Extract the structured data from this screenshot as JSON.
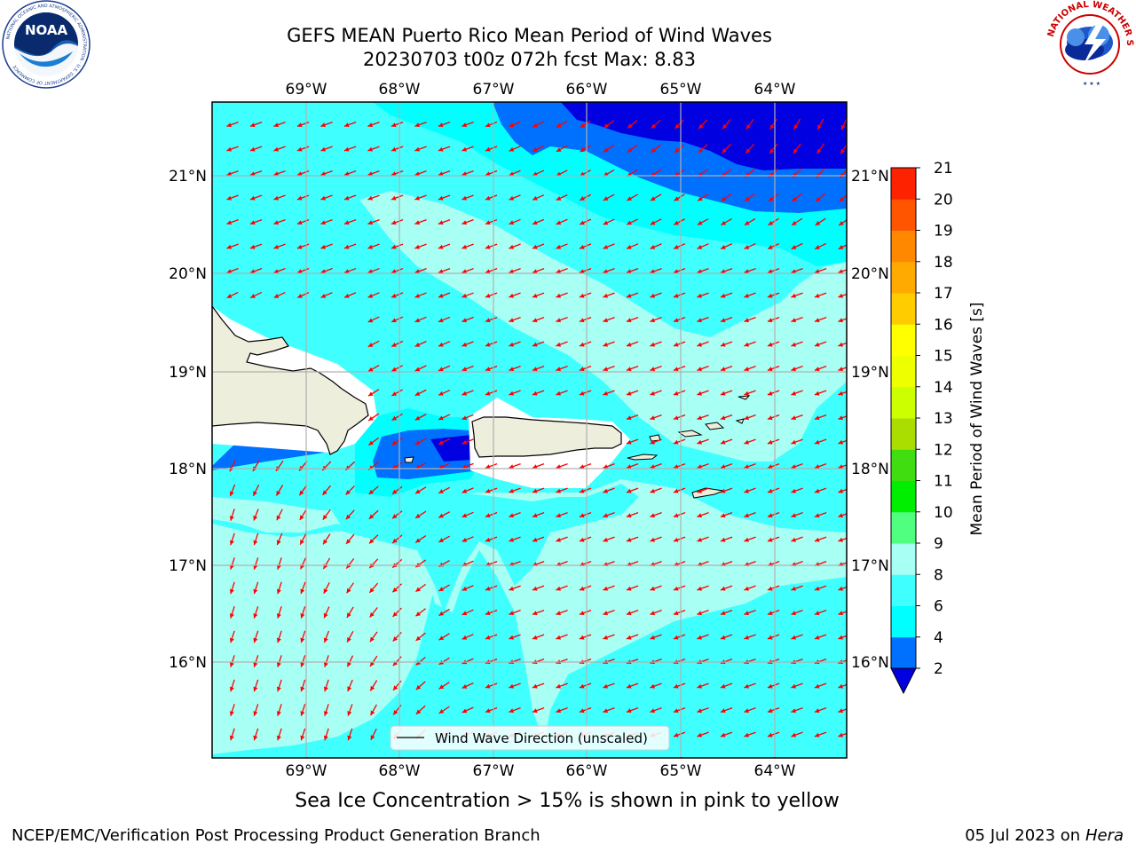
{
  "title_line1": "GEFS MEAN Puerto Rico Mean Period of Wind Waves",
  "title_line2": "20230703 t00z 072h fcst   Max: 8.83",
  "logos": {
    "left": "NOAA",
    "right": "NATIONAL WEATHER SERVICE"
  },
  "lon_labels": [
    "69°W",
    "68°W",
    "67°W",
    "66°W",
    "65°W",
    "64°W"
  ],
  "lat_labels": [
    "21°N",
    "20°N",
    "19°N",
    "18°N",
    "17°N",
    "16°N"
  ],
  "colorbar": {
    "label": "Mean Period of Wind Waves [s]",
    "ticks": [
      "2",
      "4",
      "6",
      "8",
      "9",
      "10",
      "11",
      "12",
      "13",
      "14",
      "15",
      "16",
      "17",
      "18",
      "19",
      "20",
      "21"
    ],
    "colors": [
      "#0000e0",
      "#0070ff",
      "#00ffff",
      "#40ffff",
      "#a8fff4",
      "#50ff80",
      "#00ee00",
      "#40dd10",
      "#aadd00",
      "#ccff00",
      "#eeff00",
      "#ffff00",
      "#ffcc00",
      "#ffaa00",
      "#ff8800",
      "#ff5500",
      "#ff2200",
      "#ff0000"
    ],
    "extend_color": "#0000e0"
  },
  "legend": {
    "label": "Wind Wave Direction (unscaled)"
  },
  "arrow_color": "#ff0000",
  "footer_note": "Sea Ice Concentration > 15% is shown in pink to yellow",
  "footer_left": "NCEP/EMC/Verification Post Processing Product Generation Branch",
  "footer_right_date": "05 Jul 2023 on ",
  "footer_right_host": "Hera"
}
